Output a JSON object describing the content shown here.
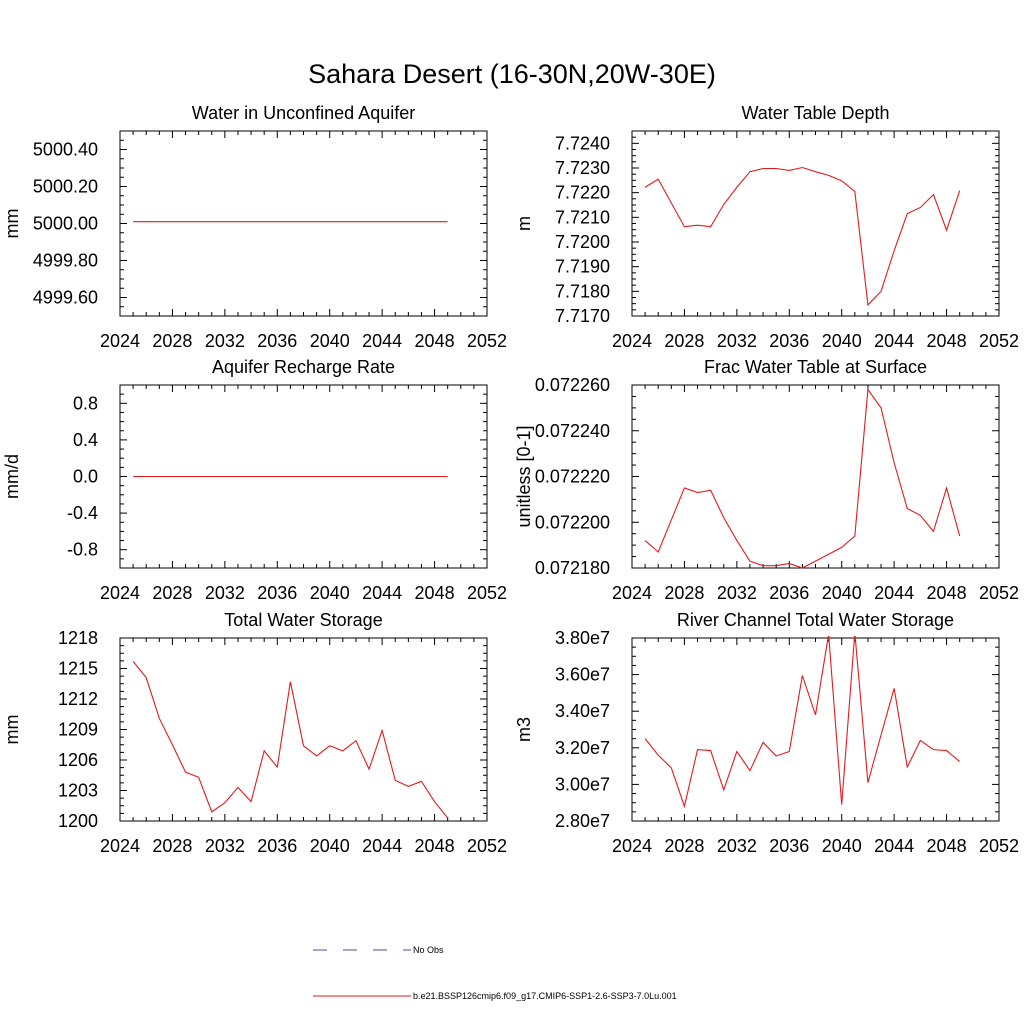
{
  "title": "Sahara Desert (16-30N,20W-30E)",
  "legend": [
    {
      "label": "No Obs",
      "color": "#3b55a0",
      "style": "dashed"
    },
    {
      "label": "b.e21.BSSP126cmip6.f09_g17.CMIP6-SSP1-2.6-SSP3-7.0Lu.001",
      "color": "#e8191b",
      "style": "solid"
    }
  ],
  "chart_data": [
    {
      "type": "line",
      "title": "Water in Unconfined Aquifer",
      "ylabel": "mm",
      "xlim": [
        2024,
        2052
      ],
      "ylim": [
        4999.5,
        5000.5
      ],
      "xticks": [
        2024,
        2028,
        2032,
        2036,
        2040,
        2044,
        2048,
        2052
      ],
      "yticks": [
        4999.6,
        4999.8,
        5000.0,
        5000.2,
        5000.4
      ],
      "ytick_labels": [
        "4999.60",
        "4999.80",
        "5000.00",
        "5000.20",
        "5000.40"
      ],
      "series": [
        {
          "color": "#e8191b",
          "x": [
            2025,
            2026,
            2027,
            2028,
            2029,
            2030,
            2031,
            2032,
            2033,
            2034,
            2035,
            2036,
            2037,
            2038,
            2039,
            2040,
            2041,
            2042,
            2043,
            2044,
            2045,
            2046,
            2047,
            2048,
            2049
          ],
          "y": [
            5000.01,
            5000.01,
            5000.01,
            5000.01,
            5000.01,
            5000.01,
            5000.01,
            5000.01,
            5000.01,
            5000.01,
            5000.01,
            5000.01,
            5000.01,
            5000.01,
            5000.01,
            5000.01,
            5000.01,
            5000.01,
            5000.01,
            5000.01,
            5000.01,
            5000.01,
            5000.01,
            5000.01,
            5000.01
          ]
        }
      ]
    },
    {
      "type": "line",
      "title": "Water Table Depth",
      "ylabel": "m",
      "xlim": [
        2024,
        2052
      ],
      "ylim": [
        7.717,
        7.7245
      ],
      "xticks": [
        2024,
        2028,
        2032,
        2036,
        2040,
        2044,
        2048,
        2052
      ],
      "yticks": [
        7.717,
        7.718,
        7.719,
        7.72,
        7.721,
        7.722,
        7.723,
        7.724
      ],
      "ytick_labels": [
        "7.7170",
        "7.7180",
        "7.7190",
        "7.7200",
        "7.7210",
        "7.7220",
        "7.7230",
        "7.7240"
      ],
      "series": [
        {
          "color": "#e8191b",
          "x": [
            2025,
            2026,
            2027,
            2028,
            2029,
            2030,
            2031,
            2032,
            2033,
            2034,
            2035,
            2036,
            2037,
            2038,
            2039,
            2040,
            2041,
            2042,
            2043,
            2044,
            2045,
            2046,
            2047,
            2048,
            2049
          ],
          "y": [
            7.72222,
            7.72255,
            7.72158,
            7.72062,
            7.72068,
            7.72062,
            7.72152,
            7.72222,
            7.72285,
            7.72298,
            7.72298,
            7.7229,
            7.72302,
            7.72285,
            7.7227,
            7.72248,
            7.72205,
            7.71745,
            7.718,
            7.71965,
            7.72115,
            7.7214,
            7.72192,
            7.72048,
            7.72208
          ]
        }
      ]
    },
    {
      "type": "line",
      "title": "Aquifer Recharge Rate",
      "ylabel": "mm/d",
      "xlim": [
        2024,
        2052
      ],
      "ylim": [
        -1.0,
        1.0
      ],
      "xticks": [
        2024,
        2028,
        2032,
        2036,
        2040,
        2044,
        2048,
        2052
      ],
      "yticks": [
        -0.8,
        -0.4,
        0.0,
        0.4,
        0.8
      ],
      "ytick_labels": [
        "-0.8",
        "-0.4",
        "0.0",
        "0.4",
        "0.8"
      ],
      "series": [
        {
          "color": "#e8191b",
          "x": [
            2025,
            2026,
            2027,
            2028,
            2029,
            2030,
            2031,
            2032,
            2033,
            2034,
            2035,
            2036,
            2037,
            2038,
            2039,
            2040,
            2041,
            2042,
            2043,
            2044,
            2045,
            2046,
            2047,
            2048,
            2049
          ],
          "y": [
            0,
            0,
            0,
            0,
            0,
            0,
            0,
            0,
            0,
            0,
            0,
            0,
            0,
            0,
            0,
            0,
            0,
            0,
            0,
            0,
            0,
            0,
            0,
            0,
            0
          ]
        }
      ]
    },
    {
      "type": "line",
      "title": "Frac Water Table at Surface",
      "ylabel": "unitless [0-1]",
      "xlim": [
        2024,
        2052
      ],
      "ylim": [
        0.07218,
        0.07226
      ],
      "xticks": [
        2024,
        2028,
        2032,
        2036,
        2040,
        2044,
        2048,
        2052
      ],
      "yticks": [
        0.07218,
        0.0722,
        0.07222,
        0.07224,
        0.07226
      ],
      "ytick_labels": [
        "0.072180",
        "0.072200",
        "0.072220",
        "0.072240",
        "0.072260"
      ],
      "series": [
        {
          "color": "#e8191b",
          "x": [
            2025,
            2026,
            2027,
            2028,
            2029,
            2030,
            2031,
            2032,
            2033,
            2034,
            2035,
            2036,
            2037,
            2038,
            2039,
            2040,
            2041,
            2042,
            2043,
            2044,
            2045,
            2046,
            2047,
            2048,
            2049
          ],
          "y": [
            0.072192,
            0.072187,
            0.072201,
            0.072215,
            0.072213,
            0.072214,
            0.072202,
            0.072192,
            0.072183,
            0.072181,
            0.072181,
            0.072182,
            0.07218,
            0.072183,
            0.072186,
            0.072189,
            0.072194,
            0.072258,
            0.07225,
            0.072226,
            0.072206,
            0.072203,
            0.072196,
            0.072215,
            0.072194
          ]
        }
      ]
    },
    {
      "type": "line",
      "title": "Total Water Storage",
      "ylabel": "mm",
      "xlim": [
        2024,
        2052
      ],
      "ylim": [
        1200,
        1218
      ],
      "xticks": [
        2024,
        2028,
        2032,
        2036,
        2040,
        2044,
        2048,
        2052
      ],
      "yticks": [
        1200,
        1203,
        1206,
        1209,
        1212,
        1215,
        1218
      ],
      "ytick_labels": [
        "1200",
        "1203",
        "1206",
        "1209",
        "1212",
        "1215",
        "1218"
      ],
      "series": [
        {
          "color": "#e8191b",
          "x": [
            2025,
            2026,
            2027,
            2028,
            2029,
            2030,
            2031,
            2032,
            2033,
            2034,
            2035,
            2036,
            2037,
            2038,
            2039,
            2040,
            2041,
            2042,
            2043,
            2044,
            2045,
            2046,
            2047,
            2048,
            2049
          ],
          "y": [
            1215.7,
            1214.1,
            1210.1,
            1207.5,
            1204.8,
            1204.3,
            1200.9,
            1201.8,
            1203.3,
            1201.9,
            1206.9,
            1205.3,
            1213.7,
            1207.4,
            1206.4,
            1207.4,
            1206.9,
            1207.9,
            1205.1,
            1208.9,
            1204.0,
            1203.4,
            1203.9,
            1201.9,
            1200.3
          ]
        }
      ]
    },
    {
      "type": "line",
      "title": "River Channel Total Water Storage",
      "ylabel": "m3",
      "xlim": [
        2024,
        2052
      ],
      "ylim": [
        28000000,
        38000000
      ],
      "xticks": [
        2024,
        2028,
        2032,
        2036,
        2040,
        2044,
        2048,
        2052
      ],
      "yticks": [
        28000000,
        30000000,
        32000000,
        34000000,
        36000000,
        38000000
      ],
      "ytick_labels": [
        "2.80e7",
        "3.00e7",
        "3.20e7",
        "3.40e7",
        "3.60e7",
        "3.80e7"
      ],
      "series": [
        {
          "color": "#e8191b",
          "x": [
            2025,
            2026,
            2027,
            2028,
            2029,
            2030,
            2031,
            2032,
            2033,
            2034,
            2035,
            2036,
            2037,
            2038,
            2039,
            2040,
            2041,
            2042,
            2043,
            2044,
            2045,
            2046,
            2047,
            2048,
            2049
          ],
          "y": [
            32500000,
            31600000,
            30900000,
            28800000,
            31900000,
            31850000,
            29700000,
            31800000,
            30750000,
            32300000,
            31550000,
            31800000,
            35950000,
            33800000,
            38200000,
            28900000,
            38300000,
            30100000,
            32700000,
            35250000,
            30950000,
            32400000,
            31900000,
            31850000,
            31250000
          ]
        }
      ]
    }
  ]
}
